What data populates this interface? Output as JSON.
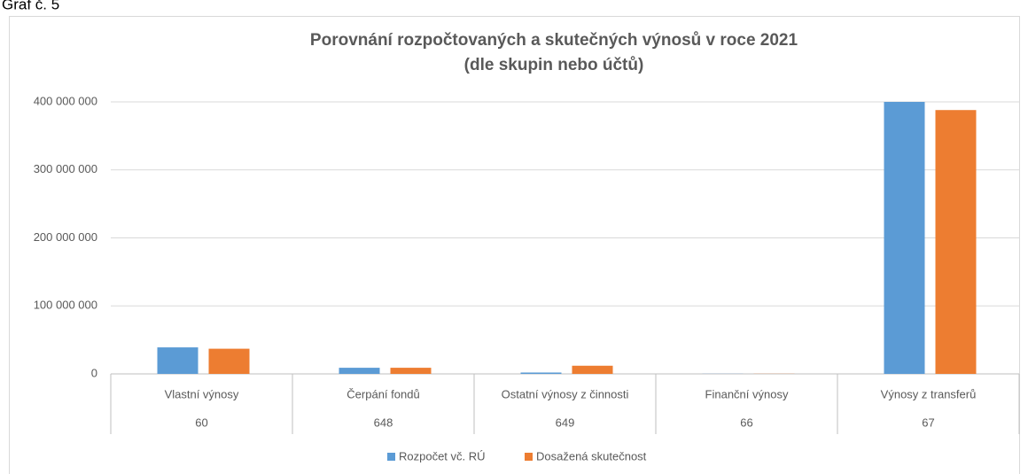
{
  "caption": "Graf č. 5",
  "chart_data": {
    "type": "bar",
    "title": [
      "Porovnání  rozpočtovaných a skutečných výnosů v roce 2021",
      "(dle skupin nebo účtů)"
    ],
    "categories": [
      "Vlastní výnosy",
      "Čerpání fondů",
      "Ostatní výnosy z činnosti",
      "Finanční výnosy",
      "Výnosy  z transferů"
    ],
    "category_codes": [
      "60",
      "648",
      "649",
      "66",
      "67"
    ],
    "series": [
      {
        "name": "Rozpočet  vč. RÚ",
        "color": "#5b9bd5",
        "values": [
          39000000,
          9000000,
          2000000,
          200000,
          400000000
        ]
      },
      {
        "name": "Dosažená skutečnost",
        "color": "#ed7d31",
        "values": [
          37000000,
          9000000,
          12000000,
          200000,
          388000000
        ]
      }
    ],
    "ylim": [
      0,
      400000000
    ],
    "yticks": [
      0,
      {
        "value": 100000000,
        "label": "100 000 000"
      },
      {
        "value": 200000000,
        "label": "200 000 000"
      },
      {
        "value": 300000000,
        "label": "300 000 000"
      },
      {
        "value": 400000000,
        "label": "400 000 000"
      }
    ],
    "grid": true,
    "legend": "bottom"
  }
}
